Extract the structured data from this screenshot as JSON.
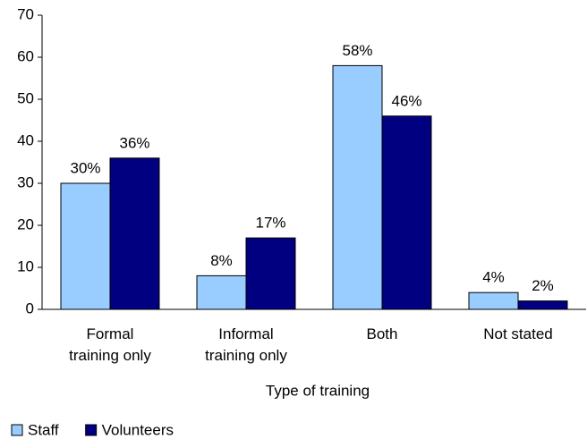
{
  "chart_data": {
    "type": "bar",
    "categories": [
      "Formal\ntraining only",
      "Informal\ntraining only",
      "Both",
      "Not stated"
    ],
    "series": [
      {
        "name": "Staff",
        "color": "#99ccff",
        "values": [
          30,
          8,
          58,
          4
        ],
        "value_labels": [
          "30%",
          "8%",
          "58%",
          "4%"
        ]
      },
      {
        "name": "Volunteers",
        "color": "#000080",
        "values": [
          36,
          17,
          46,
          2
        ],
        "value_labels": [
          "36%",
          "17%",
          "46%",
          "2%"
        ]
      }
    ],
    "x_label": "Type of training",
    "ylim": [
      0,
      70
    ],
    "yticks": [
      0,
      10,
      20,
      30,
      40,
      50,
      60,
      70
    ],
    "grid": false,
    "legend": "bottom-left"
  }
}
